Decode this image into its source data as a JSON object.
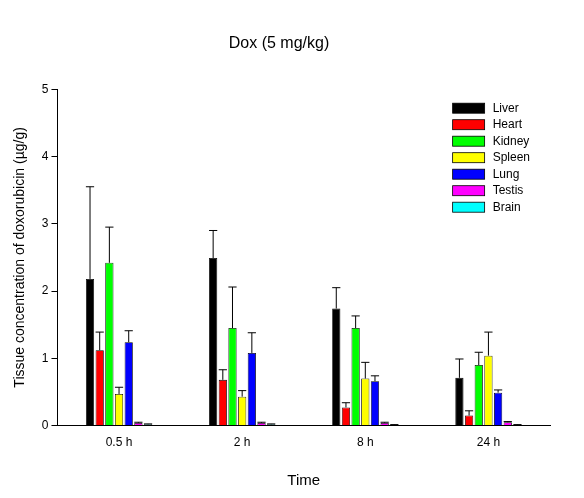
{
  "chart_data": {
    "type": "bar",
    "title": "Dox (5 mg/kg)",
    "x_label": "Time",
    "y_label": "Tissue concentration of doxorubicin (µg/g)",
    "categories": [
      "0.5 h",
      "2 h",
      "8 h",
      "24 h"
    ],
    "series": [
      {
        "name": "Liver",
        "color": "#000000",
        "values": [
          2.18,
          2.49,
          1.74,
          0.71
        ],
        "errors": [
          1.37,
          0.41,
          0.31,
          0.28
        ]
      },
      {
        "name": "Heart",
        "color": "#ff0000",
        "values": [
          1.12,
          0.68,
          0.27,
          0.15
        ],
        "errors": [
          0.27,
          0.15,
          0.07,
          0.07
        ]
      },
      {
        "name": "Kidney",
        "color": "#00ff00",
        "values": [
          2.42,
          1.45,
          1.45,
          0.9
        ],
        "errors": [
          0.53,
          0.61,
          0.18,
          0.19
        ]
      },
      {
        "name": "Spleen",
        "color": "#ffff00",
        "values": [
          0.47,
          0.43,
          0.7,
          1.04
        ],
        "errors": [
          0.1,
          0.09,
          0.24,
          0.35
        ]
      },
      {
        "name": "Lung",
        "color": "#0000ff",
        "values": [
          1.24,
          1.08,
          0.66,
          0.49
        ],
        "errors": [
          0.17,
          0.3,
          0.08,
          0.04
        ]
      },
      {
        "name": "Testis",
        "color": "#ff00ff",
        "values": [
          0.04,
          0.04,
          0.04,
          0.05
        ],
        "errors": [
          0.01,
          0.01,
          0.01,
          0.01
        ]
      },
      {
        "name": "Brain",
        "color": "#00ffff",
        "values": [
          0.02,
          0.02,
          0.01,
          0.01
        ],
        "errors": [
          0.005,
          0.005,
          0.005,
          0.005
        ]
      }
    ],
    "ylim": [
      0,
      5
    ],
    "yticks": [
      0,
      1,
      2,
      3,
      4,
      5
    ],
    "grid": false,
    "legend": "upper right"
  }
}
